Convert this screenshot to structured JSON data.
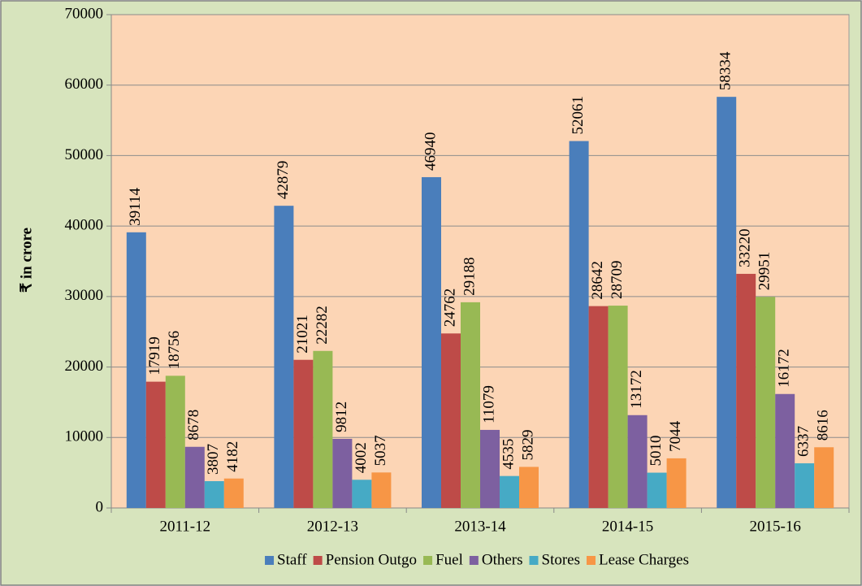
{
  "chart_data": {
    "type": "bar",
    "y_label": "₹ in crore",
    "categories": [
      "2011-12",
      "2012-13",
      "2013-14",
      "2014-15",
      "2015-16"
    ],
    "series": [
      {
        "name": "Staff",
        "color": "#4a7ebb",
        "values": [
          39114,
          42879,
          46940,
          52061,
          58334
        ]
      },
      {
        "name": "Pension Outgo",
        "color": "#be4b48",
        "values": [
          17919,
          21021,
          24762,
          28642,
          33220
        ]
      },
      {
        "name": "Fuel",
        "color": "#98b954",
        "values": [
          18756,
          22282,
          29188,
          28709,
          29951
        ]
      },
      {
        "name": "Others",
        "color": "#7d60a0",
        "values": [
          8678,
          9812,
          11079,
          13172,
          16172
        ]
      },
      {
        "name": "Stores",
        "color": "#46aac5",
        "values": [
          3807,
          4002,
          4535,
          5010,
          6337
        ]
      },
      {
        "name": "Lease Charges",
        "color": "#f79646",
        "values": [
          4182,
          5037,
          5829,
          7044,
          8616
        ]
      }
    ],
    "ylim": [
      0,
      70000
    ],
    "yticks": [
      0,
      10000,
      20000,
      30000,
      40000,
      50000,
      60000,
      70000
    ],
    "grid": true,
    "legend": "bottom",
    "show_value_labels": true
  }
}
